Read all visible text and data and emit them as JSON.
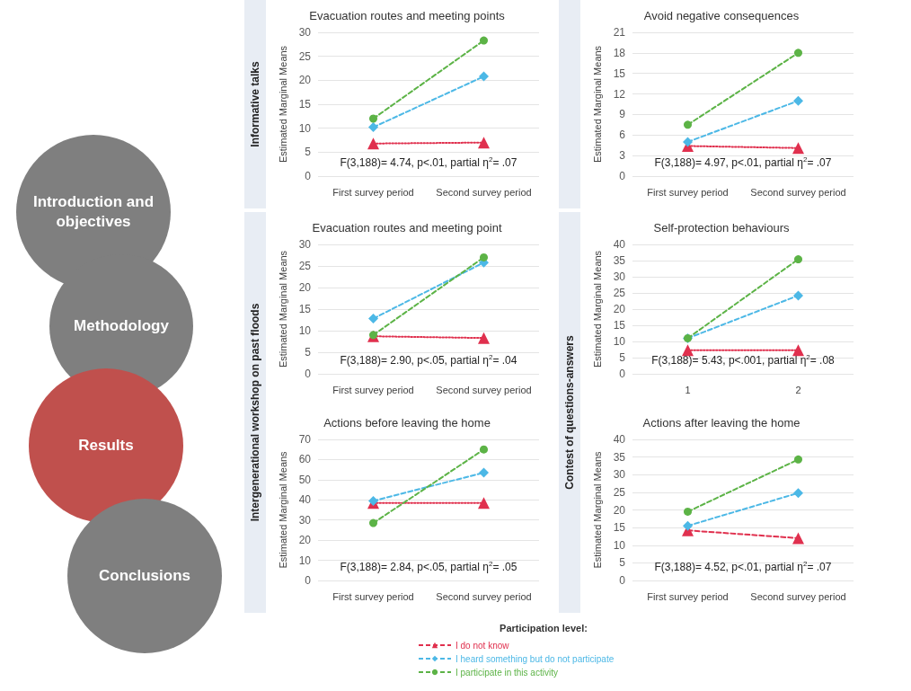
{
  "chart_data": [
    {
      "type": "other",
      "annotations": [
        "Introduction and objectives",
        "Methodology",
        "Results",
        "Conclusions"
      ]
    },
    {
      "type": "line",
      "title": "Evacuation routes and meeting points",
      "ylabel": "Estimated Marginal Means",
      "categories": [
        "First survey period",
        "Second survey period"
      ],
      "ylim": [
        0,
        30
      ],
      "yticks": [
        0,
        5,
        10,
        15,
        20,
        25,
        30
      ],
      "grid": "y",
      "series": [
        {
          "color": "#e0304e",
          "values": [
            6.8,
            7.0
          ],
          "marker": "triangle",
          "line_style": "dotted"
        },
        {
          "color": "#4cb8e6",
          "values": [
            10.2,
            20.8
          ],
          "marker": "diamond",
          "line_style": "dashed"
        },
        {
          "color": "#5cb346",
          "values": [
            12.0,
            28.3
          ],
          "marker": "circle",
          "line_style": "dashed"
        }
      ],
      "annotations": [
        "F(3,188)= 4.74, p<.01, partial η$^{2}$= .07",
        "Informative talks"
      ]
    },
    {
      "type": "line",
      "title": "Avoid negative consequences",
      "ylabel": "Estimated Marginal Means",
      "categories": [
        "First survey period",
        "Second survey period"
      ],
      "ylim": [
        0,
        21
      ],
      "yticks": [
        0,
        3,
        6,
        9,
        12,
        15,
        18,
        21
      ],
      "grid": "y",
      "series": [
        {
          "color": "#e0304e",
          "values": [
            4.4,
            4.1
          ],
          "marker": "triangle",
          "line_style": "dotted"
        },
        {
          "color": "#4cb8e6",
          "values": [
            5.0,
            11.0
          ],
          "marker": "diamond",
          "line_style": "dashed"
        },
        {
          "color": "#5cb346",
          "values": [
            7.5,
            18.0
          ],
          "marker": "circle",
          "line_style": "dashed"
        }
      ],
      "annotations": [
        "F(3,188)= 4.97, p<.01, partial η$^{2}$= .07"
      ]
    },
    {
      "type": "line",
      "title": "Evacuation routes and meeting point",
      "ylabel": "Estimated Marginal Means",
      "categories": [
        "First survey period",
        "Second survey period"
      ],
      "ylim": [
        0,
        30
      ],
      "yticks": [
        0,
        5,
        10,
        15,
        20,
        25,
        30
      ],
      "grid": "y",
      "series": [
        {
          "color": "#e0304e",
          "values": [
            8.7,
            8.3
          ],
          "marker": "triangle",
          "line_style": "dotted"
        },
        {
          "color": "#4cb8e6",
          "values": [
            12.8,
            25.8
          ],
          "marker": "diamond",
          "line_style": "dashed"
        },
        {
          "color": "#5cb346",
          "values": [
            9.0,
            27.0
          ],
          "marker": "circle",
          "line_style": "dashed"
        }
      ],
      "annotations": [
        "F(3,188)= 2.90, p<.05, partial η$^{2}$= .04",
        "Intergenerational workshop on past floods"
      ]
    },
    {
      "type": "line",
      "title": "Self-protection behaviours",
      "ylabel": "Estimated Marginal Means",
      "categories": [
        "1",
        "2"
      ],
      "ylim": [
        0,
        40
      ],
      "yticks": [
        0,
        5,
        10,
        15,
        20,
        25,
        30,
        35,
        40
      ],
      "grid": "y",
      "series": [
        {
          "color": "#e0304e",
          "values": [
            7.3,
            7.3
          ],
          "marker": "triangle",
          "line_style": "dotted"
        },
        {
          "color": "#4cb8e6",
          "values": [
            11.0,
            24.2
          ],
          "marker": "diamond",
          "line_style": "dashed"
        },
        {
          "color": "#5cb346",
          "values": [
            11.0,
            35.4
          ],
          "marker": "circle",
          "line_style": "dashed"
        }
      ],
      "annotations": [
        "F(3,188)= 5.43, p<.001, partial η$^{2}$= .08",
        "Contest of questions-answers"
      ]
    },
    {
      "type": "line",
      "title": "Actions before leaving the home",
      "ylabel": "Estimated Marginal Means",
      "categories": [
        "First survey period",
        "Second survey period"
      ],
      "ylim": [
        0,
        70
      ],
      "yticks": [
        0,
        10,
        20,
        30,
        40,
        50,
        60,
        70
      ],
      "grid": "y",
      "series": [
        {
          "color": "#e0304e",
          "values": [
            38.5,
            38.5
          ],
          "marker": "triangle",
          "line_style": "dotted"
        },
        {
          "color": "#4cb8e6",
          "values": [
            39.5,
            53.5
          ],
          "marker": "diamond",
          "line_style": "dashed"
        },
        {
          "color": "#5cb346",
          "values": [
            28.5,
            65.0
          ],
          "marker": "circle",
          "line_style": "dashed"
        }
      ],
      "annotations": [
        "F(3,188)= 2.84, p<.05, partial η$^{2}$= .05"
      ]
    },
    {
      "type": "line",
      "title": "Actions after leaving the home",
      "ylabel": "Estimated Marginal Means",
      "categories": [
        "First survey period",
        "Second survey period"
      ],
      "ylim": [
        0,
        40
      ],
      "yticks": [
        0,
        5,
        10,
        15,
        20,
        25,
        30,
        35,
        40
      ],
      "grid": "y",
      "legend": "bottom",
      "legend_title": "Participation level:",
      "series": [
        {
          "name": "I do not know",
          "color": "#e0304e",
          "values": [
            14.2,
            12.0
          ],
          "marker": "triangle",
          "line_style": "dashed"
        },
        {
          "name": "I heard something but do not participate",
          "color": "#4cb8e6",
          "values": [
            15.5,
            24.8
          ],
          "marker": "diamond",
          "line_style": "dashed"
        },
        {
          "name": "I participate in this activity",
          "color": "#5cb346",
          "values": [
            19.5,
            34.3
          ],
          "marker": "circle",
          "line_style": "dashed"
        }
      ],
      "annotations": [
        "F(3,188)= 4.52, p<.01, partial η$^{2}$= .07"
      ]
    }
  ]
}
